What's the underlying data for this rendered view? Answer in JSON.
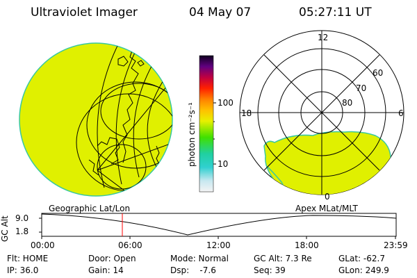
{
  "header": {
    "title": "Ultraviolet Imager",
    "date": "04 May 07",
    "time": "05:27:11 UT"
  },
  "colorbar": {
    "unit_label": "photon cm⁻²s⁻¹",
    "tick_labels": [
      "100",
      "10"
    ]
  },
  "polar_plot": {
    "mlt_labels": [
      "12",
      "18",
      "6",
      "0"
    ],
    "lat_labels": [
      "60",
      "70",
      "80"
    ]
  },
  "altitude_strip": {
    "axis_label": "GC Alt",
    "left_title": "Geographic Lat/Lon",
    "right_title": "Apex MLat/MLT",
    "y_ticks": [
      "9.0",
      "1.8"
    ],
    "time_ticks": [
      "00:00",
      "06:00",
      "12:00",
      "18:00",
      "23:59"
    ],
    "current_time_marker": "05:27:11"
  },
  "info": {
    "flt": "Flt: HOME",
    "ip": "IP: 36.0",
    "door": "Door: Open",
    "gain": "Gain: 14",
    "mode": "Mode: Normal",
    "dsp": "Dsp:    -7.6",
    "gc_alt": "GC Alt: 7.3 Re",
    "seq": "Seq: 39",
    "glat": "GLat: -62.7",
    "glon": "GLon: 249.9"
  },
  "colors": {
    "image_fill": "#e0f000",
    "image_edge": "#38c8a0",
    "time_marker": "#ff0000"
  }
}
